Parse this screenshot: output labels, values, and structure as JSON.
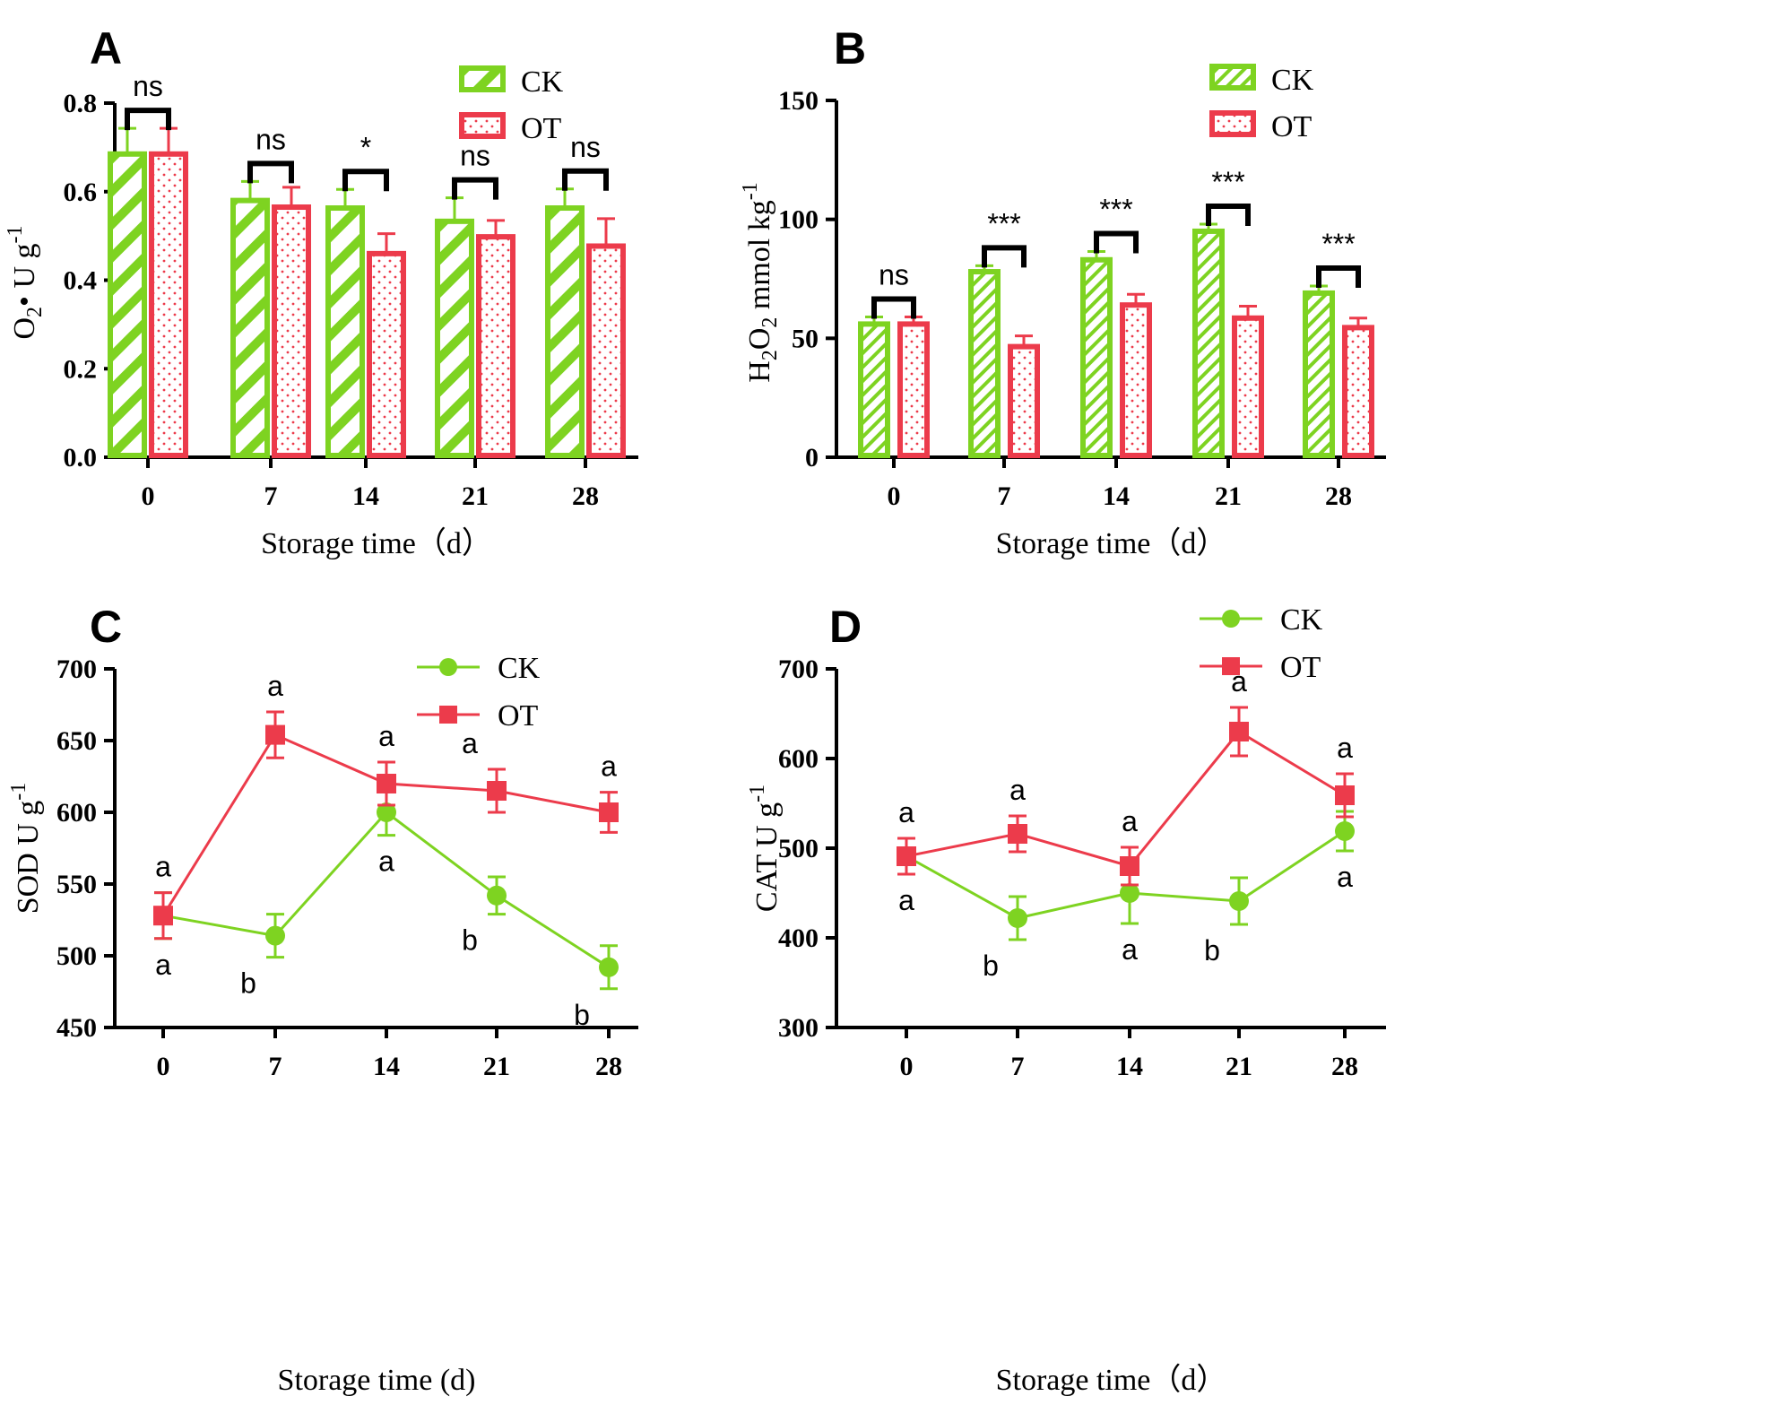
{
  "colors": {
    "ck": "#7ed321",
    "ot": "#ec3b4b",
    "axis": "#000000"
  },
  "chart_data": [
    {
      "panel": "A",
      "type": "bar",
      "title": "",
      "xlabel": "Storage time（d）",
      "ylabel": {
        "main": "O",
        "sub": "2",
        "rest": "• U g",
        "sup": "-1"
      },
      "categories": [
        "0",
        "7",
        "14",
        "21",
        "28"
      ],
      "ylim": [
        0,
        0.8
      ],
      "yticks": [
        "0.0",
        "0.2",
        "0.4",
        "0.6",
        "0.8"
      ],
      "legend": [
        "CK",
        "OT"
      ],
      "series": [
        {
          "name": "CK",
          "values": [
            0.685,
            0.58,
            0.563,
            0.533,
            0.563
          ],
          "errors": [
            0.058,
            0.043,
            0.042,
            0.053,
            0.043
          ]
        },
        {
          "name": "OT",
          "values": [
            0.685,
            0.565,
            0.46,
            0.498,
            0.477
          ],
          "errors": [
            0.058,
            0.045,
            0.045,
            0.037,
            0.062
          ]
        }
      ],
      "significance": [
        "ns",
        "ns",
        "*",
        "ns",
        "ns"
      ]
    },
    {
      "panel": "B",
      "type": "bar",
      "title": "",
      "xlabel": "Storage time（d）",
      "ylabel": {
        "main": "H",
        "sub": "2",
        "mid": "O",
        "sub2": "2",
        "rest": " mmol kg",
        "sup": "-1"
      },
      "categories": [
        "0",
        "7",
        "14",
        "21",
        "28"
      ],
      "ylim": [
        0,
        150
      ],
      "yticks": [
        "0",
        "50",
        "100",
        "150"
      ],
      "legend": [
        "CK",
        "OT"
      ],
      "series": [
        {
          "name": "CK",
          "values": [
            56,
            78,
            83,
            95,
            69
          ],
          "errors": [
            3,
            2.5,
            3.5,
            3,
            3
          ]
        },
        {
          "name": "OT",
          "values": [
            56,
            46.5,
            64,
            58.5,
            54.5
          ],
          "errors": [
            3,
            4.5,
            4.5,
            5,
            4
          ]
        }
      ],
      "significance": [
        "ns",
        "***",
        "***",
        "***",
        "***"
      ]
    },
    {
      "panel": "C",
      "type": "line",
      "title": "",
      "xlabel": "Storage time (d)",
      "ylabel": {
        "main": "SOD  U g",
        "sup": "-1"
      },
      "categories": [
        "0",
        "7",
        "14",
        "21",
        "28"
      ],
      "ylim": [
        450,
        700
      ],
      "yticks": [
        "450",
        "500",
        "550",
        "600",
        "650",
        "700"
      ],
      "legend": [
        "CK",
        "OT"
      ],
      "series": [
        {
          "name": "CK",
          "values": [
            528,
            514,
            600,
            542,
            492
          ],
          "errors": [
            16,
            15,
            16,
            13,
            15
          ],
          "letters": [
            "a",
            "b",
            "a",
            "b",
            "b"
          ]
        },
        {
          "name": "OT",
          "values": [
            528,
            654,
            620,
            615,
            600
          ],
          "errors": [
            16,
            16,
            15,
            15,
            14
          ],
          "letters": [
            "a",
            "a",
            "a",
            "a",
            "a"
          ]
        }
      ]
    },
    {
      "panel": "D",
      "type": "line",
      "title": "",
      "xlabel": "Storage time（d）",
      "ylabel": {
        "main": "CAT U g",
        "sup": "-1"
      },
      "categories": [
        "0",
        "7",
        "14",
        "21",
        "28"
      ],
      "ylim": [
        300,
        700
      ],
      "yticks": [
        "300",
        "400",
        "500",
        "600",
        "700"
      ],
      "legend": [
        "CK",
        "OT"
      ],
      "series": [
        {
          "name": "CK",
          "values": [
            491,
            422,
            450,
            441,
            519
          ],
          "errors": [
            20,
            24,
            34,
            26,
            22
          ],
          "letters": [
            "a",
            "b",
            "a",
            "b",
            "a"
          ]
        },
        {
          "name": "OT",
          "values": [
            491,
            516,
            480,
            630,
            559
          ],
          "errors": [
            20,
            20,
            21,
            27,
            24
          ],
          "letters": [
            "a",
            "a",
            "a",
            "a",
            "a"
          ]
        }
      ]
    }
  ]
}
